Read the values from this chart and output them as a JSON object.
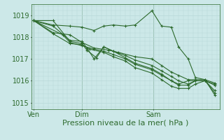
{
  "background_color": "#cce8e8",
  "grid_color": "#b8d8d8",
  "line_color": "#2d6a2d",
  "marker_color": "#2d6a2d",
  "xlabel": "Pression niveau de la mer( hPa )",
  "xlabel_fontsize": 8,
  "tick_label_color": "#2d6a2d",
  "tick_fontsize": 7,
  "ylim": [
    1014.7,
    1019.5
  ],
  "yticks": [
    1015,
    1016,
    1017,
    1018,
    1019
  ],
  "xlim": [
    -0.1,
    7.7
  ],
  "series": [
    [
      0.0,
      1018.75,
      0.8,
      1018.55,
      1.5,
      1018.5,
      2.0,
      1018.45,
      2.5,
      1018.3,
      2.9,
      1018.5,
      3.3,
      1018.55,
      3.8,
      1018.5,
      4.2,
      1018.55,
      4.9,
      1019.2,
      5.3,
      1018.5,
      5.7,
      1018.45,
      6.0,
      1017.55,
      6.4,
      1017.0,
      6.7,
      1016.15,
      7.1,
      1016.05,
      7.5,
      1015.35
    ],
    [
      0.0,
      1018.75,
      0.8,
      1018.2,
      1.5,
      1018.1,
      2.0,
      1017.75,
      2.5,
      1017.5,
      3.1,
      1017.4,
      3.5,
      1017.3,
      4.2,
      1017.1,
      4.9,
      1017.0,
      5.3,
      1016.7,
      5.7,
      1016.4,
      6.0,
      1016.25,
      6.4,
      1016.05,
      6.7,
      1016.05,
      7.1,
      1016.05,
      7.5,
      1015.9
    ],
    [
      0.0,
      1018.75,
      0.8,
      1018.5,
      1.5,
      1017.85,
      2.0,
      1017.8,
      2.2,
      1017.5,
      2.5,
      1017.0,
      2.9,
      1017.55,
      3.3,
      1017.35,
      3.8,
      1017.15,
      4.2,
      1016.95,
      4.9,
      1016.7,
      5.3,
      1016.45,
      5.7,
      1016.2,
      6.0,
      1016.0,
      6.4,
      1015.85,
      6.7,
      1016.0,
      7.1,
      1016.0,
      7.5,
      1015.85
    ],
    [
      0.0,
      1018.75,
      0.8,
      1018.75,
      1.5,
      1017.8,
      2.0,
      1017.7,
      2.2,
      1017.4,
      2.6,
      1017.05,
      2.9,
      1017.55,
      3.3,
      1017.35,
      3.8,
      1017.05,
      4.2,
      1016.8,
      4.9,
      1016.55,
      5.3,
      1016.3,
      5.7,
      1016.0,
      6.0,
      1015.85,
      6.4,
      1016.0,
      6.7,
      1016.0,
      7.1,
      1016.0,
      7.5,
      1015.55
    ],
    [
      0.0,
      1018.75,
      1.2,
      1018.1,
      1.5,
      1017.75,
      2.0,
      1017.6,
      2.5,
      1017.45,
      2.9,
      1017.35,
      3.3,
      1017.2,
      3.8,
      1017.0,
      4.2,
      1016.75,
      4.9,
      1016.5,
      5.3,
      1016.25,
      5.7,
      1016.0,
      6.0,
      1015.8,
      6.4,
      1015.8,
      6.7,
      1016.0,
      7.1,
      1016.0,
      7.5,
      1015.8
    ],
    [
      0.0,
      1018.75,
      0.8,
      1018.15,
      1.5,
      1017.7,
      2.0,
      1017.65,
      2.3,
      1017.45,
      2.9,
      1017.3,
      3.3,
      1017.1,
      3.8,
      1016.9,
      4.2,
      1016.6,
      4.9,
      1016.35,
      5.3,
      1016.05,
      5.7,
      1015.75,
      6.0,
      1015.65,
      6.4,
      1015.65,
      6.7,
      1015.85,
      7.1,
      1016.0,
      7.5,
      1015.45
    ]
  ],
  "vlines_x": [
    0.0,
    2.0,
    4.95
  ],
  "xtick_positions": [
    0.0,
    2.0,
    4.95
  ],
  "xtick_labels": [
    "Ven",
    "Dim",
    "Sam"
  ]
}
